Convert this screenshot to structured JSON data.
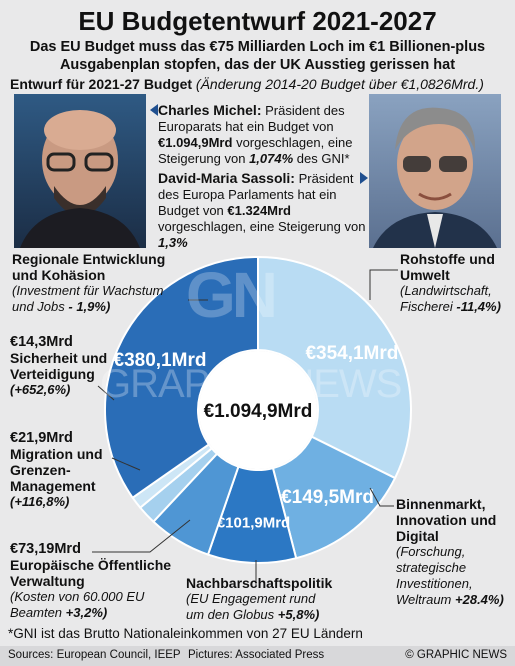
{
  "header": {
    "title": "EU Budgetentwurf 2021-2027",
    "subtitle": "Das EU Budget muss das €75 Milliarden Loch im €1 Billionen-plus Ausgabenplan stopfen, das der UK Ausstieg gerissen hat",
    "draft_label": "Entwurf für 2021-27 Budget",
    "draft_note": "(Änderung 2014-20 Budget über €1,0826Mrd.)"
  },
  "bios": [
    {
      "name": "Charles Michel:",
      "text1": "Präsident des Europarats hat ein Budget von",
      "value": "€1.094,9Mrd",
      "text2": "vorgeschlagen, eine Steigerung von",
      "pct": "1,074%",
      "text3": "des GNI*"
    },
    {
      "name": "David-Maria Sassoli:",
      "text1": "Präsident des Europa Parlaments hat ein Budget von",
      "value": "€1.324Mrd",
      "text2": "vorgeschlagen, eine Steigerung von",
      "pct": "1,3%",
      "text3": ""
    }
  ],
  "segments": [
    {
      "label": "Rohstoffe und Umwelt",
      "detail": "(Landwirtschaft, Fischerei",
      "change": "-11,4%)",
      "amount": "€354,1Mrd",
      "color": "#b9dcf3"
    },
    {
      "label": "Binnenmarkt, Innovation und Digital",
      "detail": "(Forschung, strategische Investitionen, Weltraum",
      "change": "+28.4%)",
      "amount": "€149,5Mrd",
      "color": "#6fb0e2"
    },
    {
      "label": "Nachbarschaftspolitik",
      "detail": "(EU Engagement rund um den Globus",
      "change": "+5,8%)",
      "amount": "€101,9Mrd",
      "color": "#2c78c4"
    },
    {
      "label": "Europäische Öffentliche Verwaltung",
      "detail": "(Kosten von 60.000 EU Beamten",
      "change": "+3,2%)",
      "amount": "€73,19Mrd",
      "color": "#4f96d4"
    },
    {
      "label": "Migration und Grenzen-Management",
      "detail": "",
      "change": "(+116,8%)",
      "amount": "€21,9Mrd",
      "color": "#a5d0ee"
    },
    {
      "label": "Sicherheit und Verteidigung",
      "detail": "",
      "change": "(+652,6%)",
      "amount": "€14,3Mrd",
      "color": "#cde6f6"
    },
    {
      "label": "Regionale Entwicklung und Kohäsion",
      "detail": "(Investment für Wachstum und Jobs",
      "change": "- 1,9%)",
      "amount": "€380,1Mrd",
      "color": "#2a6db7"
    }
  ],
  "chart_data": {
    "type": "pie",
    "title": "EU Budgetentwurf 2021-2027",
    "total_label": "€1.094,9Mrd",
    "categories": [
      "Rohstoffe und Umwelt",
      "Binnenmarkt, Innovation und Digital",
      "Nachbarschaftspolitik",
      "Europäische Öffentliche Verwaltung",
      "Migration und Grenzen-Management",
      "Sicherheit und Verteidigung",
      "Regionale Entwicklung und Kohäsion"
    ],
    "values": [
      354.1,
      149.5,
      101.9,
      73.19,
      21.9,
      14.3,
      380.1
    ],
    "changes_percent": [
      -11.4,
      28.4,
      5.8,
      3.2,
      116.8,
      652.6,
      -1.9
    ]
  },
  "watermark": {
    "logo": "GN",
    "text": "GRAPHIC NEWS"
  },
  "footnote": "*GNI ist das Brutto Nationaleinkommen von 27 EU Ländern",
  "footer": {
    "sources": "Sources: European Council, IEEP",
    "pictures": "Pictures: Associated Press",
    "credit": "© GRAPHIC NEWS"
  }
}
